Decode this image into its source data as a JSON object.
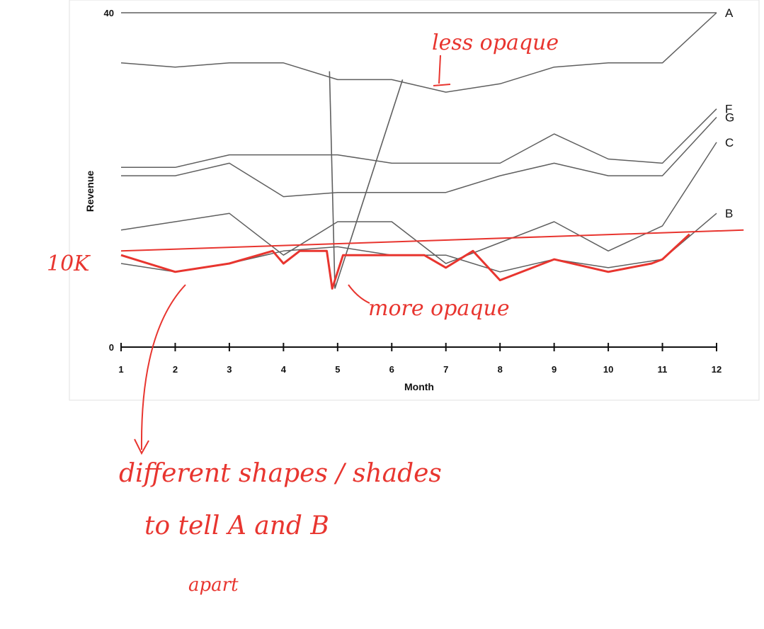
{
  "chart_data": {
    "type": "line",
    "title": "",
    "xlabel": "Month",
    "ylabel": "Revenue",
    "xlim": [
      1,
      12
    ],
    "ylim": [
      0,
      40
    ],
    "y_ticks_labeled": [
      0,
      40
    ],
    "x": [
      1,
      2,
      3,
      4,
      5,
      6,
      7,
      8,
      9,
      10,
      11,
      12
    ],
    "grid": false,
    "legend": "right-edge labels",
    "series": [
      {
        "name": "A",
        "values": [
          40,
          40,
          40,
          40,
          40,
          40,
          40,
          40,
          40,
          40,
          40,
          40
        ]
      },
      {
        "name": "F",
        "values": [
          21.5,
          21.5,
          23.0,
          23.0,
          23.0,
          22.0,
          22.0,
          22.0,
          25.5,
          22.5,
          22.0,
          28.5
        ]
      },
      {
        "name": "G",
        "values": [
          20.5,
          20.5,
          22.0,
          18.0,
          18.5,
          18.5,
          18.5,
          20.5,
          22.0,
          20.5,
          20.5,
          27.5
        ]
      },
      {
        "name": "C",
        "values": [
          14.0,
          15.0,
          16.0,
          11.0,
          15.0,
          15.0,
          10.0,
          12.5,
          15.0,
          11.5,
          14.5,
          24.5
        ]
      },
      {
        "name": "B",
        "values": [
          10.0,
          9.0,
          10.0,
          11.5,
          12.0,
          11.0,
          11.0,
          9.0,
          10.5,
          9.5,
          10.5,
          16.0
        ]
      },
      {
        "name": "",
        "values": [
          34.0,
          33.5,
          34.0,
          34.0,
          32.0,
          32.0,
          30.5,
          31.5,
          33.5,
          34.0,
          34.0,
          40.0
        ]
      }
    ],
    "extra_lines": [
      {
        "values": [
          {
            "x": 4.85,
            "y": 33.0
          },
          {
            "x": 4.95,
            "y": 7.0
          }
        ]
      },
      {
        "values": [
          {
            "x": 4.95,
            "y": 7.0
          },
          {
            "x": 6.2,
            "y": 32.0
          }
        ]
      }
    ],
    "annotations": {
      "red_series": [
        {
          "x": 1,
          "y": 11.0
        },
        {
          "x": 2,
          "y": 9.0
        },
        {
          "x": 3,
          "y": 10.0
        },
        {
          "x": 3.8,
          "y": 11.5
        },
        {
          "x": 4,
          "y": 10.0
        },
        {
          "x": 4.3,
          "y": 11.5
        },
        {
          "x": 4.8,
          "y": 11.5
        },
        {
          "x": 4.9,
          "y": 7.0
        },
        {
          "x": 5.1,
          "y": 11.0
        },
        {
          "x": 6,
          "y": 11.0
        },
        {
          "x": 6.6,
          "y": 11.0
        },
        {
          "x": 7,
          "y": 9.5
        },
        {
          "x": 7.5,
          "y": 11.5
        },
        {
          "x": 8,
          "y": 8.0
        },
        {
          "x": 9,
          "y": 10.5
        },
        {
          "x": 10,
          "y": 9.0
        },
        {
          "x": 10.8,
          "y": 10.0
        },
        {
          "x": 11,
          "y": 10.5
        },
        {
          "x": 11.5,
          "y": 13.5
        }
      ],
      "red_trend": [
        {
          "x": 1,
          "y": 11.5
        },
        {
          "x": 12.5,
          "y": 14.0
        }
      ],
      "labels": {
        "less_opaque": "less opaque",
        "more_opaque": "more opaque",
        "ten_k": "10K",
        "different_shapes": "different shapes / shades",
        "tell_apart": "to tell A and B",
        "apart": "apart"
      }
    }
  },
  "colors": {
    "line": "#5f5f5f",
    "axis": "#111111",
    "annotation": "#e8352f"
  }
}
